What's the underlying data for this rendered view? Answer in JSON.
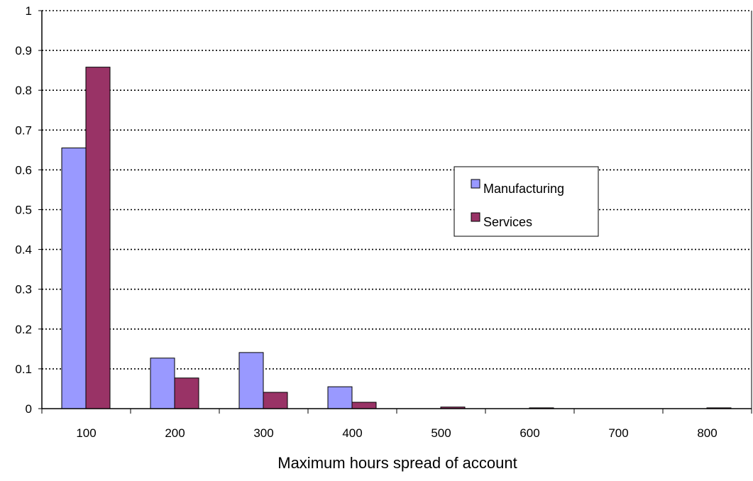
{
  "chart_data": {
    "type": "bar",
    "title": "",
    "xlabel": "Maximum hours spread of account",
    "ylabel": "",
    "categories": [
      "100",
      "200",
      "300",
      "400",
      "500",
      "600",
      "700",
      "800"
    ],
    "series": [
      {
        "name": "Manufacturing",
        "color": "#9999ff",
        "values": [
          0.655,
          0.127,
          0.141,
          0.055,
          0.0,
          0.0,
          0.0,
          0.0
        ]
      },
      {
        "name": "Services",
        "color": "#993366",
        "values": [
          0.858,
          0.077,
          0.041,
          0.016,
          0.004,
          0.002,
          0.0,
          0.002
        ]
      }
    ],
    "ylim": [
      0,
      1
    ],
    "yticks": [
      "0",
      "0.1",
      "0.2",
      "0.3",
      "0.4",
      "0.5",
      "0.6",
      "0.7",
      "0.8",
      "0.9",
      "1"
    ],
    "grid": "dotted horizontal",
    "legend_position": "right-center"
  }
}
